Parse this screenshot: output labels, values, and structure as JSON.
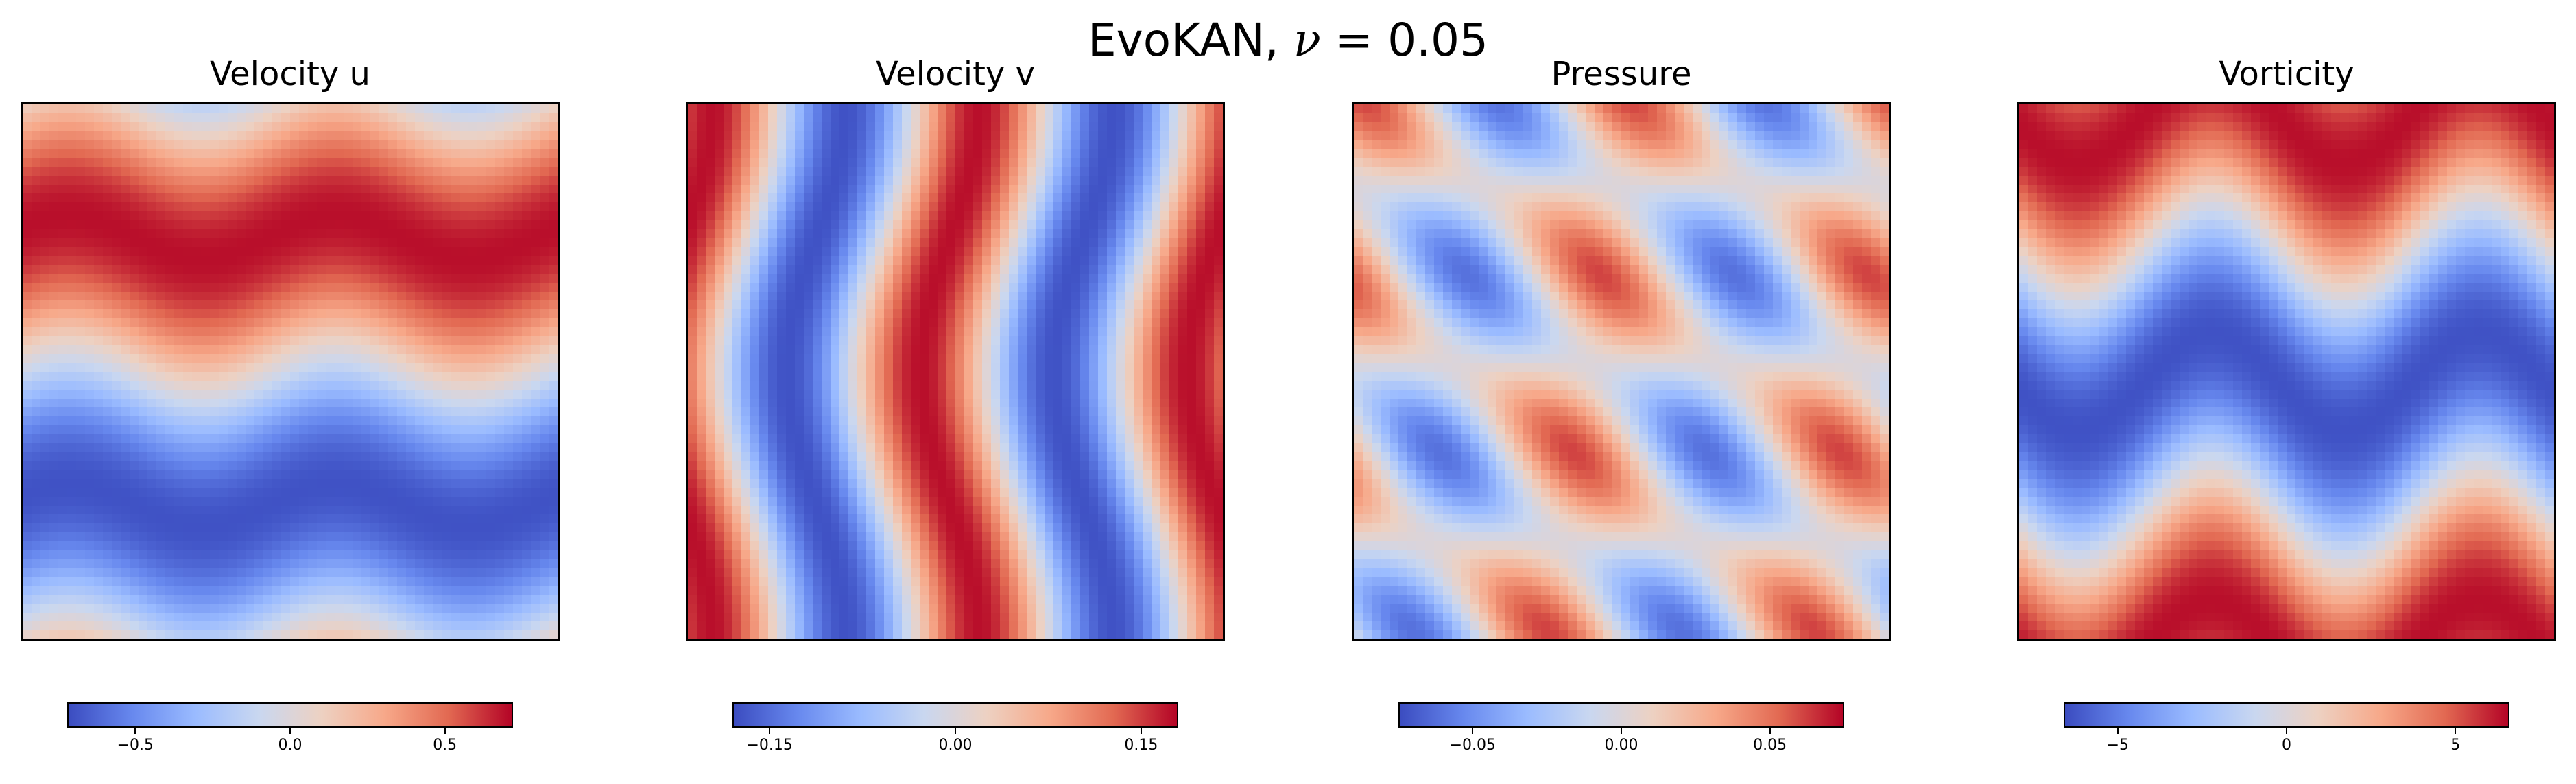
{
  "chart_data": {
    "title_text": "EvoKAN, ",
    "title_symbol": "ν",
    "title_value": " = 0.05",
    "colormap": [
      "#3b4cc0",
      "#6788ee",
      "#9abbff",
      "#c9d7f0",
      "#edd1c2",
      "#f7a889",
      "#e26952",
      "#b40426"
    ],
    "panels": [
      {
        "type": "heatmap",
        "title": "Velocity u",
        "field": "u",
        "vmin": -0.72,
        "vmax": 0.72,
        "ticks": [
          -0.5,
          0.0,
          0.5
        ],
        "tick_labels": [
          "−0.5",
          "0.0",
          "0.5"
        ]
      },
      {
        "type": "heatmap",
        "title": "Velocity v",
        "field": "v",
        "vmin": -0.18,
        "vmax": 0.18,
        "ticks": [
          -0.15,
          0.0,
          0.15
        ],
        "tick_labels": [
          "−0.15",
          "0.00",
          "0.15"
        ]
      },
      {
        "type": "heatmap",
        "title": "Pressure",
        "field": "p",
        "vmin": -0.075,
        "vmax": 0.075,
        "ticks": [
          -0.05,
          0.0,
          0.05
        ],
        "tick_labels": [
          "−0.05",
          "0.00",
          "0.05"
        ]
      },
      {
        "type": "heatmap",
        "title": "Vorticity",
        "field": "w",
        "vmin": -6.6,
        "vmax": 6.6,
        "ticks": [
          -5,
          0,
          5
        ],
        "tick_labels": [
          "−5",
          "0",
          "5"
        ]
      }
    ]
  }
}
